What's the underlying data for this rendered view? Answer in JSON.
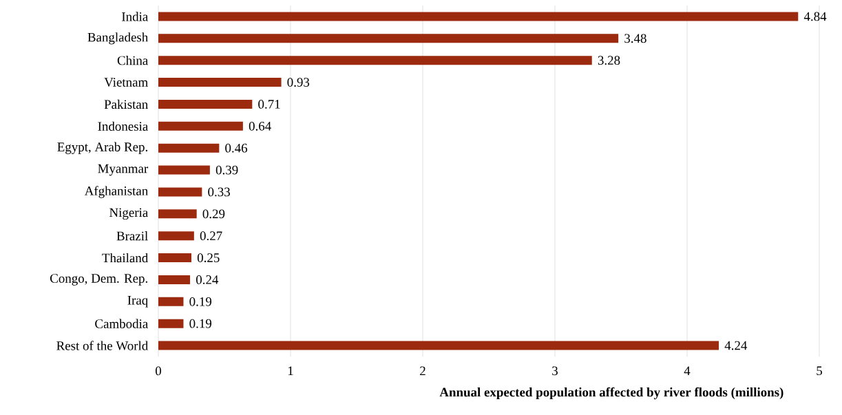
{
  "chart_data": {
    "type": "bar",
    "orientation": "horizontal",
    "xlabel": "Annual expected population affected by river floods (millions)",
    "categories": [
      "India",
      "Bangladesh",
      "China",
      "Vietnam",
      "Pakistan",
      "Indonesia",
      "Egypt, Arab Rep.",
      "Myanmar",
      "Afghanistan",
      "Nigeria",
      "Brazil",
      "Thailand",
      "Congo, Dem. Rep.",
      "Iraq",
      "Cambodia",
      "Rest of the World"
    ],
    "values": [
      4.84,
      3.48,
      3.28,
      0.93,
      0.71,
      0.64,
      0.46,
      0.39,
      0.33,
      0.29,
      0.27,
      0.25,
      0.24,
      0.19,
      0.19,
      4.24
    ],
    "color": "#9b2a0e",
    "xlim": [
      0,
      5
    ],
    "xticks": [
      0,
      1,
      2,
      3,
      4,
      5
    ],
    "grid": "x",
    "data_labels": true
  }
}
